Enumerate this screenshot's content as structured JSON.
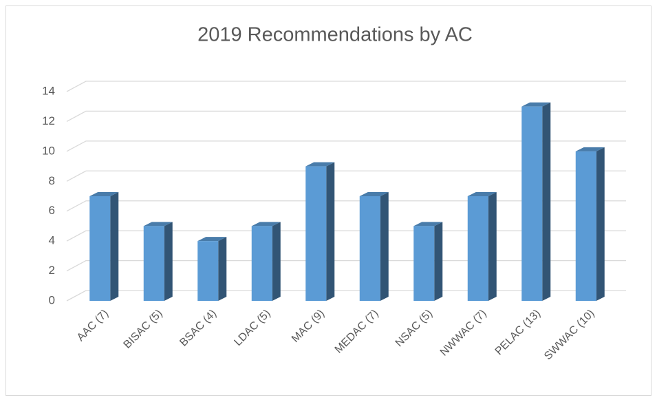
{
  "chart_data": {
    "type": "bar3d",
    "title": "2019 Recommendations by AC",
    "categories": [
      "AAC (7)",
      "BISAC (5)",
      "BSAC (4)",
      "LDAC (5)",
      "MAC (9)",
      "MEDAC (7)",
      "NSAC (5)",
      "NWWAC (7)",
      "PELAC (13)",
      "SWWAC (10)"
    ],
    "values": [
      7,
      5,
      4,
      5,
      9,
      7,
      5,
      7,
      13,
      10
    ],
    "color": "#5b9bd5",
    "ylim": [
      0,
      14
    ],
    "yticks": [
      0,
      2,
      4,
      6,
      8,
      10,
      12,
      14
    ],
    "grid": true
  }
}
